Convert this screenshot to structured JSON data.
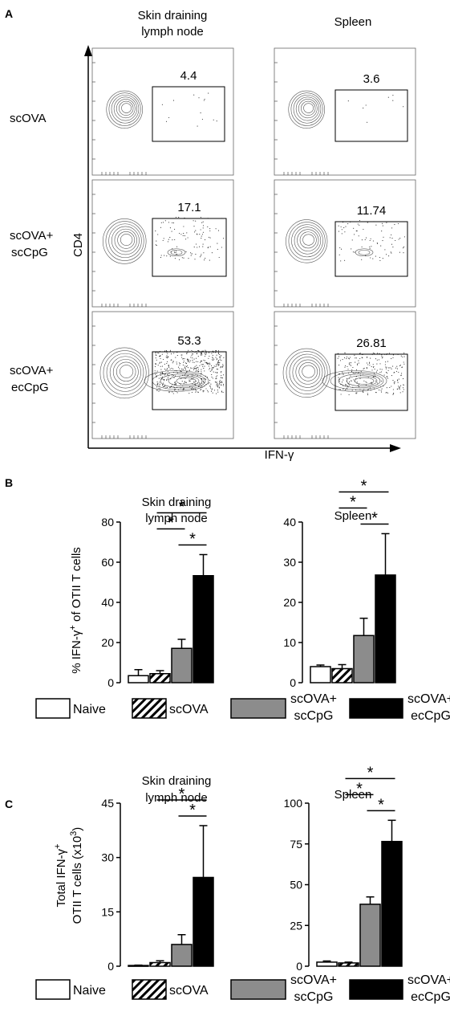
{
  "panels": {
    "A": {
      "letter": "A",
      "columns": [
        {
          "title_line1": "Skin draining",
          "title_line2": "lymph node"
        },
        {
          "title_line1": "Spleen",
          "title_line2": ""
        }
      ],
      "rows": [
        {
          "label_line1": "scOVA",
          "label_line2": ""
        },
        {
          "label_line1": "scOVA+",
          "label_line2": "scCpG"
        },
        {
          "label_line1": "scOVA+",
          "label_line2": "ecCpG"
        }
      ],
      "gate_values": [
        [
          "4.4",
          "3.6"
        ],
        [
          "17.1",
          "11.74"
        ],
        [
          "53.3",
          "26.81"
        ]
      ],
      "y_axis_label": "CD4",
      "x_axis_label": "IFN-γ"
    },
    "B": {
      "letter": "B",
      "y_axis_label": "% IFN-γ",
      "y_axis_sup": "+",
      "y_axis_suffix": " of  OTII T cells"
    },
    "C": {
      "letter": "C",
      "y_axis_line1": "Total IFN-γ",
      "y_axis_line1_sup": "+",
      "y_axis_line2": "OTII T cells (x10",
      "y_axis_line2_sup": "3",
      "y_axis_line2_end": ")"
    }
  },
  "legend": {
    "items": [
      {
        "label_line1": "Naive",
        "label_line2": "",
        "fill": "#ffffff",
        "pattern": "none"
      },
      {
        "label_line1": "scOVA",
        "label_line2": "",
        "fill": "#ffffff",
        "pattern": "hatch"
      },
      {
        "label_line1": "scOVA+",
        "label_line2": "scCpG",
        "fill": "#8c8c8c",
        "pattern": "none"
      },
      {
        "label_line1": "scOVA+",
        "label_line2": "ecCpG",
        "fill": "#000000",
        "pattern": "none"
      }
    ]
  },
  "chart_data": [
    {
      "type": "bar",
      "panel": "B",
      "title": "Skin draining lymph node",
      "title_line1": "Skin draining",
      "title_line2": "lymph node",
      "categories": [
        "Naive",
        "scOVA",
        "scOVA+ scCpG",
        "scOVA+ ecCpG"
      ],
      "values": [
        3.5,
        4.5,
        17.1,
        53.3
      ],
      "errors": [
        3.0,
        1.5,
        4.5,
        10.5
      ],
      "ylim": [
        0,
        80
      ],
      "yticks": [
        0,
        20,
        40,
        60,
        80
      ],
      "significance": [
        {
          "from": 2,
          "to": 3,
          "label": "*"
        },
        {
          "from": 1,
          "to": 2,
          "label": "*"
        },
        {
          "from": 1,
          "to": 3,
          "label": "*"
        }
      ]
    },
    {
      "type": "bar",
      "panel": "B",
      "title": "Spleen",
      "title_line1": "Spleen",
      "title_line2": "",
      "categories": [
        "Naive",
        "scOVA",
        "scOVA+ scCpG",
        "scOVA+ ecCpG"
      ],
      "values": [
        4.0,
        3.5,
        11.74,
        26.81
      ],
      "errors": [
        0.4,
        1.0,
        4.3,
        10.3
      ],
      "ylim": [
        0,
        40
      ],
      "yticks": [
        0,
        10,
        20,
        30,
        40
      ],
      "significance": [
        {
          "from": 2,
          "to": 3,
          "label": "*"
        },
        {
          "from": 1,
          "to": 2,
          "label": "*"
        },
        {
          "from": 1,
          "to": 3,
          "label": "*"
        }
      ]
    },
    {
      "type": "bar",
      "panel": "C",
      "title": "Skin draining lymph node",
      "title_line1": "Skin draining",
      "title_line2": "lymph node",
      "categories": [
        "Naive",
        "scOVA",
        "scOVA+ scCpG",
        "scOVA+ ecCpG"
      ],
      "values": [
        0.2,
        1.0,
        6.0,
        24.5
      ],
      "errors": [
        0.1,
        0.5,
        2.7,
        14.3
      ],
      "ylim": [
        0,
        45
      ],
      "yticks": [
        0,
        15,
        30,
        45
      ],
      "significance": [
        {
          "from": 2,
          "to": 3,
          "label": "*"
        },
        {
          "from": 1,
          "to": 3,
          "label": "*"
        }
      ]
    },
    {
      "type": "bar",
      "panel": "C",
      "title": "Spleen",
      "title_line1": "Spleen",
      "title_line2": "",
      "categories": [
        "Naive",
        "scOVA",
        "scOVA+ scCpG",
        "scOVA+ ecCpG"
      ],
      "values": [
        2.5,
        2.0,
        38.0,
        76.5
      ],
      "errors": [
        0.7,
        0.5,
        4.5,
        13.0
      ],
      "ylim": [
        0,
        100
      ],
      "yticks": [
        0,
        25,
        50,
        75,
        100
      ],
      "significance": [
        {
          "from": 2,
          "to": 3,
          "label": "*"
        },
        {
          "from": 1,
          "to": 2,
          "label": "*"
        },
        {
          "from": 1,
          "to": 3,
          "label": "*"
        }
      ]
    }
  ]
}
